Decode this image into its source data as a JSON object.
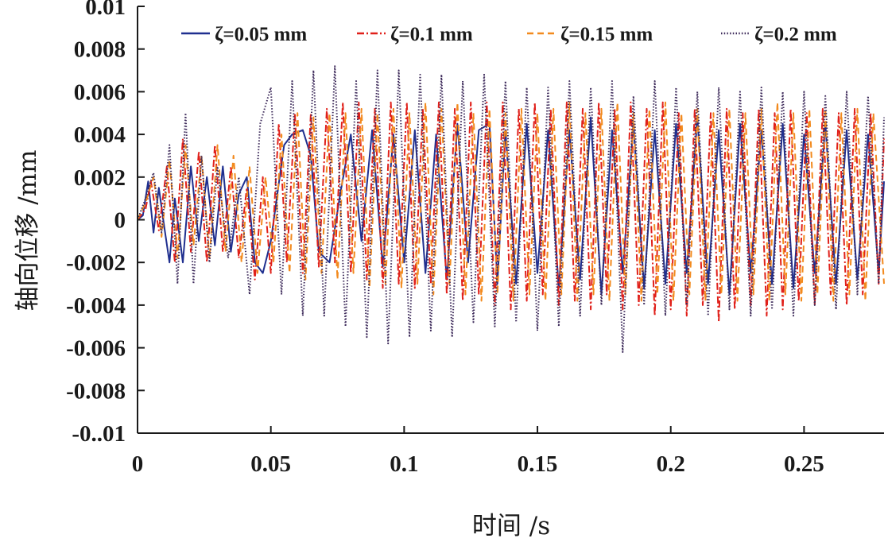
{
  "chart_data": {
    "type": "line",
    "xlabel": "时间 /s",
    "ylabel": "轴向位移 /mm",
    "xlim": [
      0,
      0.28
    ],
    "ylim": [
      -0.01,
      0.01
    ],
    "x_ticks": [
      0,
      0.05,
      0.1,
      0.15,
      0.2,
      0.25
    ],
    "x_tick_labels": [
      "0",
      "0.05",
      "0.1",
      "0.15",
      "0.2",
      "0.25"
    ],
    "y_ticks": [
      0.01,
      0.008,
      0.006,
      0.004,
      0.002,
      0,
      -0.002,
      -0.004,
      -0.006,
      -0.008,
      -0.01
    ],
    "y_tick_labels": [
      "0.01",
      "0.008",
      "0.006",
      "0.004",
      "0.002",
      "0",
      "-0.002",
      "-0.004",
      "-0.006",
      "-0.008",
      "-0..01"
    ],
    "grid": false,
    "legend_position": "top",
    "series": [
      {
        "name": "ζ=0.05 mm",
        "color": "#1f2f8f",
        "dash": "solid",
        "x": [
          0,
          0.002,
          0.004,
          0.006,
          0.008,
          0.01,
          0.012,
          0.014,
          0.017,
          0.02,
          0.023,
          0.026,
          0.029,
          0.032,
          0.035,
          0.038,
          0.041,
          0.044,
          0.047,
          0.05,
          0.055,
          0.058,
          0.062,
          0.065,
          0.068,
          0.072,
          0.076,
          0.08,
          0.084,
          0.088,
          0.092,
          0.096,
          0.1,
          0.104,
          0.108,
          0.112,
          0.116,
          0.12,
          0.124,
          0.128,
          0.132,
          0.135,
          0.138,
          0.142,
          0.146,
          0.15,
          0.154,
          0.158,
          0.162,
          0.166,
          0.17,
          0.174,
          0.178,
          0.182,
          0.186,
          0.19,
          0.194,
          0.198,
          0.202,
          0.206,
          0.21,
          0.214,
          0.218,
          0.222,
          0.226,
          0.23,
          0.234,
          0.238,
          0.242,
          0.246,
          0.25,
          0.254,
          0.258,
          0.262,
          0.266,
          0.27,
          0.274,
          0.278,
          0.28
        ],
        "values": [
          0,
          0.0002,
          0.0018,
          -0.0006,
          0.0015,
          -0.0003,
          -0.002,
          0.001,
          -0.002,
          0.0025,
          -0.001,
          0.002,
          -0.0012,
          0.0025,
          -0.0015,
          0.0012,
          0.002,
          -0.002,
          -0.0025,
          -0.001,
          0.0035,
          0.004,
          0.0042,
          0.003,
          -0.0015,
          -0.002,
          0.0012,
          0.004,
          -0.001,
          0.0042,
          -0.0022,
          0.004,
          -0.002,
          0.0042,
          -0.0025,
          0.004,
          -0.0028,
          0.0045,
          -0.002,
          0.0042,
          0.0045,
          -0.003,
          0.0042,
          -0.003,
          0.0045,
          -0.0025,
          0.0042,
          -0.0032,
          0.0042,
          -0.0028,
          0.0048,
          -0.0035,
          0.0042,
          -0.0025,
          0.0045,
          -0.0032,
          0.0042,
          -0.003,
          0.0045,
          -0.0025,
          0.0048,
          -0.003,
          0.0042,
          -0.0035,
          0.0045,
          -0.0025,
          0.0042,
          -0.003,
          0.0045,
          -0.0032,
          0.004,
          -0.0025,
          0.0045,
          -0.003,
          0.0042,
          -0.0028,
          0.004,
          -0.0025,
          0.0018
        ]
      },
      {
        "name": "ζ=0.1 mm",
        "color": "#e0201a",
        "dash": "dashdot",
        "x": [
          0,
          0.003,
          0.005,
          0.008,
          0.011,
          0.014,
          0.017,
          0.02,
          0.023,
          0.026,
          0.029,
          0.032,
          0.035,
          0.038,
          0.041,
          0.044,
          0.047,
          0.05,
          0.053,
          0.056,
          0.059,
          0.062,
          0.065,
          0.068,
          0.071,
          0.074,
          0.077,
          0.08,
          0.083,
          0.086,
          0.089,
          0.092,
          0.095,
          0.098,
          0.101,
          0.104,
          0.107,
          0.11,
          0.113,
          0.116,
          0.119,
          0.122,
          0.125,
          0.128,
          0.131,
          0.134,
          0.137,
          0.14,
          0.143,
          0.146,
          0.149,
          0.152,
          0.155,
          0.158,
          0.161,
          0.164,
          0.167,
          0.17,
          0.173,
          0.176,
          0.179,
          0.182,
          0.185,
          0.188,
          0.191,
          0.194,
          0.197,
          0.2,
          0.203,
          0.206,
          0.209,
          0.212,
          0.215,
          0.218,
          0.221,
          0.224,
          0.227,
          0.23,
          0.233,
          0.236,
          0.239,
          0.242,
          0.245,
          0.248,
          0.251,
          0.254,
          0.257,
          0.26,
          0.263,
          0.266,
          0.269,
          0.272,
          0.275,
          0.278,
          0.28
        ],
        "values": [
          0,
          0.0005,
          0.0018,
          -0.0005,
          0.0025,
          -0.002,
          0.0038,
          -0.0015,
          0.0032,
          -0.002,
          0.0035,
          -0.0015,
          0.0025,
          -0.0018,
          0.0015,
          -0.0028,
          0.002,
          -0.0025,
          0.0045,
          -0.002,
          0.005,
          -0.0025,
          0.005,
          -0.0022,
          0.0052,
          -0.002,
          0.0055,
          -0.0025,
          0.0055,
          -0.0028,
          0.0052,
          -0.0032,
          0.0055,
          -0.003,
          0.0055,
          -0.0032,
          0.0052,
          -0.003,
          0.0055,
          -0.0035,
          0.0052,
          -0.0038,
          0.0055,
          -0.0035,
          0.0055,
          -0.004,
          0.0055,
          -0.0042,
          0.0052,
          -0.0038,
          0.0055,
          -0.0035,
          0.0052,
          -0.004,
          0.0055,
          -0.0038,
          0.0052,
          -0.0042,
          0.0055,
          -0.0035,
          0.0052,
          -0.0042,
          0.0055,
          -0.004,
          0.0052,
          -0.0045,
          0.0055,
          -0.0042,
          0.005,
          -0.0045,
          0.0052,
          -0.004,
          0.005,
          -0.0048,
          0.0052,
          -0.0042,
          0.005,
          -0.004,
          0.0052,
          -0.0045,
          0.005,
          -0.0042,
          0.0052,
          -0.0038,
          0.005,
          -0.004,
          0.0052,
          -0.0035,
          0.005,
          -0.004,
          0.0052,
          -0.0035,
          0.005,
          -0.003,
          0.0038
        ]
      },
      {
        "name": "ζ=0.15 mm",
        "color": "#f28a1e",
        "dash": "dash",
        "x": [
          0,
          0.003,
          0.006,
          0.009,
          0.012,
          0.015,
          0.018,
          0.021,
          0.024,
          0.027,
          0.03,
          0.033,
          0.036,
          0.039,
          0.042,
          0.045,
          0.048,
          0.051,
          0.054,
          0.057,
          0.06,
          0.063,
          0.066,
          0.069,
          0.072,
          0.075,
          0.078,
          0.081,
          0.084,
          0.087,
          0.09,
          0.093,
          0.096,
          0.099,
          0.102,
          0.105,
          0.108,
          0.111,
          0.114,
          0.117,
          0.12,
          0.123,
          0.126,
          0.129,
          0.132,
          0.135,
          0.138,
          0.141,
          0.144,
          0.147,
          0.15,
          0.153,
          0.156,
          0.159,
          0.162,
          0.165,
          0.168,
          0.171,
          0.174,
          0.177,
          0.18,
          0.183,
          0.186,
          0.189,
          0.192,
          0.195,
          0.198,
          0.201,
          0.204,
          0.207,
          0.21,
          0.213,
          0.216,
          0.219,
          0.222,
          0.225,
          0.228,
          0.231,
          0.234,
          0.237,
          0.24,
          0.243,
          0.246,
          0.249,
          0.252,
          0.255,
          0.258,
          0.261,
          0.264,
          0.267,
          0.27,
          0.273,
          0.276,
          0.28
        ],
        "values": [
          0,
          0.0008,
          0.002,
          -0.0008,
          0.0028,
          -0.0018,
          0.0035,
          -0.0012,
          0.003,
          -0.0018,
          0.0035,
          -0.0015,
          0.003,
          -0.002,
          0.0025,
          -0.0025,
          0.002,
          -0.002,
          0.004,
          -0.0025,
          0.005,
          -0.0028,
          0.0048,
          -0.0025,
          0.005,
          -0.0028,
          0.005,
          -0.0025,
          0.0052,
          -0.0032,
          0.005,
          -0.003,
          0.0052,
          -0.0032,
          0.005,
          -0.003,
          0.0055,
          -0.0035,
          0.0052,
          -0.003,
          0.0055,
          -0.0035,
          0.005,
          -0.0038,
          0.0052,
          -0.0035,
          0.005,
          -0.0038,
          0.0052,
          -0.0035,
          0.005,
          -0.0038,
          0.0052,
          -0.0035,
          0.0055,
          -0.0038,
          0.005,
          -0.0035,
          0.0052,
          -0.0038,
          0.0055,
          -0.0035,
          0.005,
          -0.0038,
          0.0052,
          -0.0035,
          0.0055,
          -0.0038,
          0.005,
          -0.0035,
          0.0052,
          -0.0038,
          0.005,
          -0.0035,
          0.0052,
          -0.0038,
          0.005,
          -0.0035,
          0.0052,
          -0.0038,
          0.0055,
          -0.0035,
          0.005,
          -0.0038,
          0.0052,
          -0.0035,
          0.0052,
          -0.0038,
          0.005,
          -0.0035,
          0.0052,
          -0.0038,
          0.005,
          -0.003
        ]
      },
      {
        "name": "ζ=0.2 mm",
        "color": "#3d2a5a",
        "dash": "dot",
        "x": [
          0,
          0.003,
          0.006,
          0.009,
          0.012,
          0.015,
          0.018,
          0.021,
          0.024,
          0.027,
          0.03,
          0.034,
          0.038,
          0.042,
          0.046,
          0.05,
          0.054,
          0.058,
          0.062,
          0.066,
          0.07,
          0.074,
          0.078,
          0.082,
          0.086,
          0.09,
          0.094,
          0.098,
          0.102,
          0.106,
          0.11,
          0.114,
          0.118,
          0.122,
          0.126,
          0.13,
          0.134,
          0.138,
          0.142,
          0.146,
          0.15,
          0.154,
          0.158,
          0.162,
          0.166,
          0.17,
          0.174,
          0.178,
          0.182,
          0.186,
          0.19,
          0.194,
          0.198,
          0.202,
          0.206,
          0.21,
          0.214,
          0.218,
          0.222,
          0.226,
          0.23,
          0.234,
          0.238,
          0.242,
          0.246,
          0.25,
          0.254,
          0.258,
          0.262,
          0.266,
          0.27,
          0.274,
          0.278,
          0.28
        ],
        "values": [
          0,
          0.001,
          0.0022,
          -0.0006,
          0.0035,
          -0.003,
          0.005,
          -0.003,
          0.003,
          -0.002,
          0.0025,
          -0.0018,
          0.002,
          -0.0035,
          0.0045,
          0.0062,
          -0.0035,
          0.0065,
          -0.0045,
          0.007,
          -0.0045,
          0.0072,
          -0.005,
          0.0065,
          -0.0055,
          0.007,
          -0.0058,
          0.007,
          -0.0055,
          0.0068,
          -0.0052,
          0.0068,
          -0.0055,
          0.0065,
          -0.0048,
          0.0068,
          -0.005,
          0.0065,
          -0.0048,
          0.0062,
          -0.0052,
          0.0062,
          -0.005,
          0.0065,
          -0.0045,
          0.0062,
          -0.004,
          0.0065,
          -0.0062,
          0.0058,
          -0.004,
          0.0065,
          -0.0045,
          0.0062,
          -0.004,
          0.006,
          -0.0045,
          0.0062,
          -0.0042,
          0.006,
          -0.0045,
          0.0062,
          -0.0042,
          0.006,
          -0.0045,
          0.006,
          -0.004,
          0.0058,
          -0.0042,
          0.006,
          -0.0035,
          0.0058,
          -0.003,
          0.0048
        ]
      }
    ]
  }
}
